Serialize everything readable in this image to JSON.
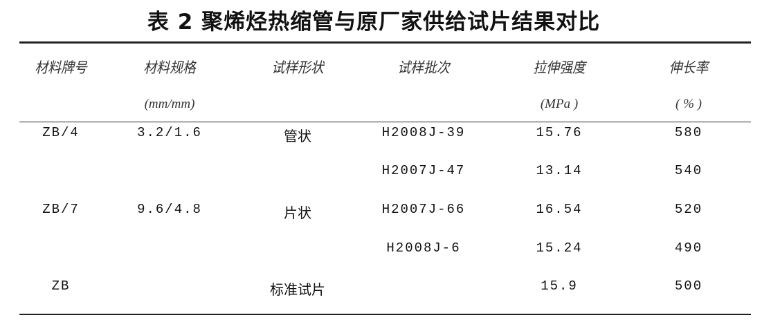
{
  "title": "表 2 聚烯烃热缩管与原厂家供给试片结果对比",
  "headers": [
    {
      "label": "材料牌号",
      "unit": ""
    },
    {
      "label": "材料规格",
      "unit": "(mm/mm)"
    },
    {
      "label": "试样形状",
      "unit": ""
    },
    {
      "label": "试样批次",
      "unit": ""
    },
    {
      "label": "拉伸强度",
      "unit": "(MPa )"
    },
    {
      "label": "伸长率",
      "unit": "( % )"
    }
  ],
  "rows": [
    [
      "ZB/4",
      "3.2/1.6",
      "管状",
      "H2008J-39",
      "15.76",
      "580"
    ],
    [
      "",
      "",
      "",
      "H2007J-47",
      "13.14",
      "540"
    ],
    [
      "ZB/7",
      "9.6/4.8",
      "片状",
      "H2007J-66",
      "16.54",
      "520"
    ],
    [
      "",
      "",
      "",
      "H2008J-6",
      "15.24",
      "490"
    ],
    [
      "ZB",
      "",
      "标准试片",
      "",
      "15.9",
      "500"
    ]
  ]
}
